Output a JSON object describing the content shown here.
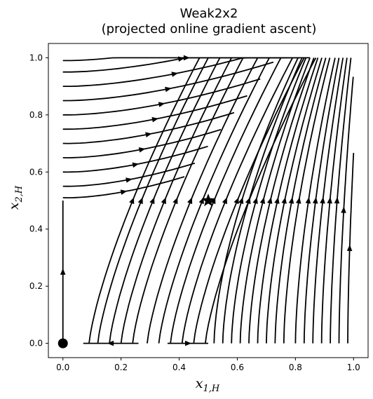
{
  "chart_data": {
    "type": "streamplot",
    "title": "Weak2x2",
    "subtitle": "(projected online gradient ascent)",
    "xlabel": "x_{1,H}",
    "ylabel": "x_{2,H}",
    "xlim": [
      -0.05,
      1.05
    ],
    "ylim": [
      -0.05,
      1.05
    ],
    "xticks": [
      "0.0",
      "0.2",
      "0.4",
      "0.6",
      "0.8",
      "1.0"
    ],
    "yticks": [
      "0.0",
      "0.2",
      "0.4",
      "0.6",
      "0.8",
      "1.0"
    ],
    "grid": false,
    "legend": "none",
    "line_color": "#000000",
    "markers": [
      {
        "shape": "star",
        "x": 0.5,
        "y": 0.5
      },
      {
        "shape": "circle",
        "x": 0.0,
        "y": 0.0
      }
    ],
    "boundary_segments": [
      {
        "x1": 0.0,
        "y1": 0.0,
        "x2": 0.0,
        "y2": 0.5,
        "direction": "up"
      },
      {
        "x1": 0.07,
        "y1": 0.0,
        "x2": 0.26,
        "y2": 0.0,
        "direction": "left"
      },
      {
        "x1": 0.36,
        "y1": 0.0,
        "x2": 0.5,
        "y2": 0.0,
        "direction": "right"
      }
    ],
    "left_group_start_y": [
      0.97,
      0.93,
      0.88,
      0.83,
      0.78,
      0.73,
      0.68,
      0.63,
      0.58,
      0.53,
      0.49
    ],
    "mid_group_start_x": [
      0.09,
      0.12,
      0.16,
      0.2,
      0.24,
      0.29,
      0.33,
      0.37,
      0.41,
      0.45,
      0.49
    ],
    "right_group_start_x": [
      0.52,
      0.55,
      0.58,
      0.61,
      0.64,
      0.67,
      0.7,
      0.73,
      0.76,
      0.8,
      0.83,
      0.86,
      0.89,
      0.92,
      0.95,
      0.98,
      1.0
    ]
  }
}
